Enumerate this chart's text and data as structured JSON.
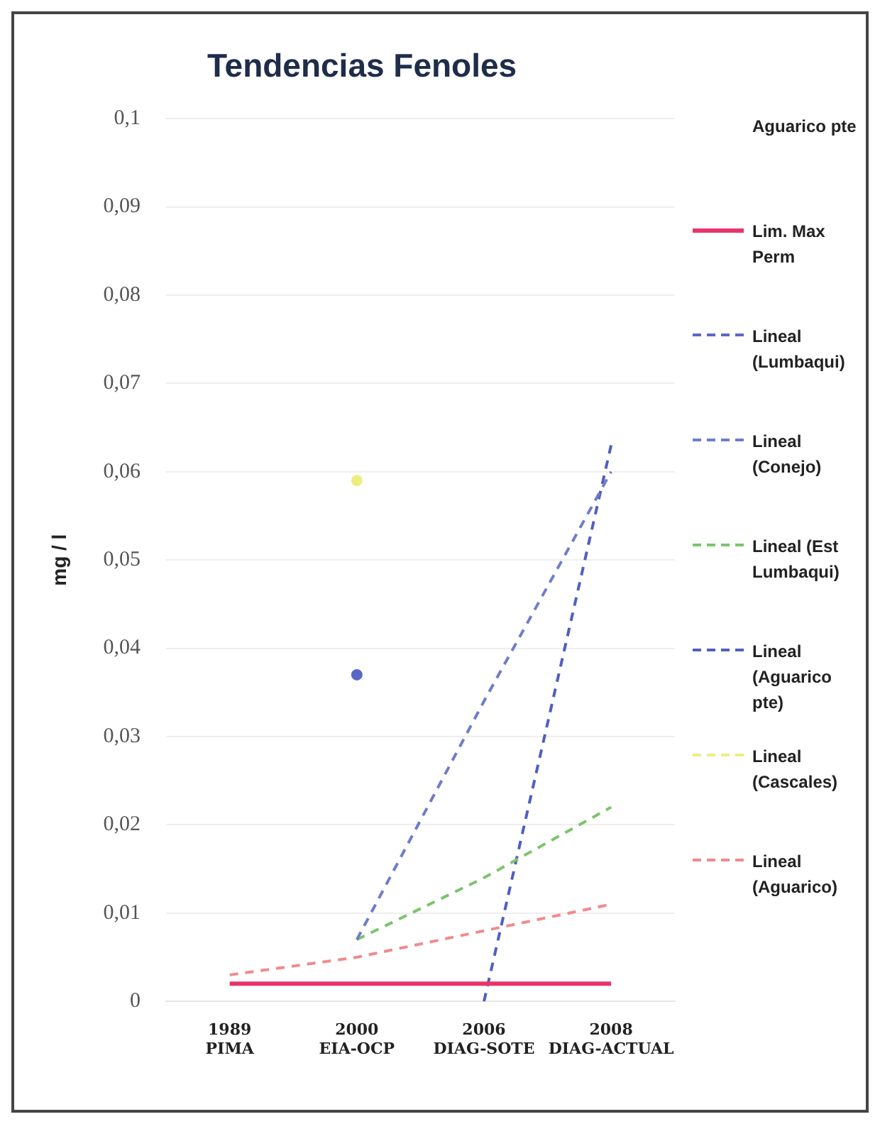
{
  "chart_data": {
    "type": "line",
    "title": "Tendencias Fenoles",
    "ylabel": "mg / l",
    "categories": [
      "1989\nPIMA",
      "2000\nEIA-OCP",
      "2006\nDIAG-SOTE",
      "2008\nDIAG-ACTUAL"
    ],
    "ylim": [
      0,
      0.1
    ],
    "yticks": [
      0,
      {
        "value": 0.01,
        "label": "0,01"
      },
      {
        "value": 0.02,
        "label": "0,02"
      },
      {
        "value": 0.03,
        "label": "0,03"
      },
      {
        "value": 0.04,
        "label": "0,04"
      },
      {
        "value": 0.05,
        "label": "0,05"
      },
      {
        "value": 0.06,
        "label": "0,06"
      },
      {
        "value": 0.07,
        "label": "0,07"
      },
      {
        "value": 0.08,
        "label": "0,08"
      },
      {
        "value": 0.09,
        "label": "0,09"
      },
      {
        "value": 0.1,
        "label": "0,1"
      }
    ],
    "grid": "y",
    "legend": "right",
    "marker": "none",
    "series": [
      {
        "name": "Aguarico pte",
        "values": [
          null,
          null,
          null,
          null
        ]
      },
      {
        "name": "Lim. Max Perm",
        "color": "#e8356a",
        "line_style": "solid",
        "values": [
          0.002,
          0.002,
          0.002,
          0.002
        ]
      },
      {
        "name": "Lineal (Lumbaqui)",
        "color": "#5a68c4",
        "line_style": "dashed",
        "marker": "circle",
        "values": [
          null,
          0.037,
          null,
          null
        ]
      },
      {
        "name": "Lineal (Conejo)",
        "color": "#6f7ccc",
        "line_style": "dashed",
        "values": [
          null,
          0.007,
          0.034,
          0.06
        ]
      },
      {
        "name": "Lineal (Est Lumbaqui)",
        "color": "#7cc46c",
        "line_style": "dashed",
        "values": [
          null,
          0.007,
          0.014,
          0.022
        ]
      },
      {
        "name": "Lineal (Aguarico pte)",
        "color": "#4f5fc0",
        "line_style": "dashed",
        "values": [
          null,
          null,
          0,
          0.063
        ]
      },
      {
        "name": "Lineal (Cascales)",
        "color": "#eeee80",
        "line_style": "dashed",
        "marker": "circle",
        "values": [
          null,
          0.059,
          null,
          null
        ]
      },
      {
        "name": "Lineal (Aguarico)",
        "color": "#f08a8a",
        "line_style": "dashed",
        "values": [
          0.003,
          0.005,
          0.008,
          0.011
        ]
      }
    ]
  }
}
